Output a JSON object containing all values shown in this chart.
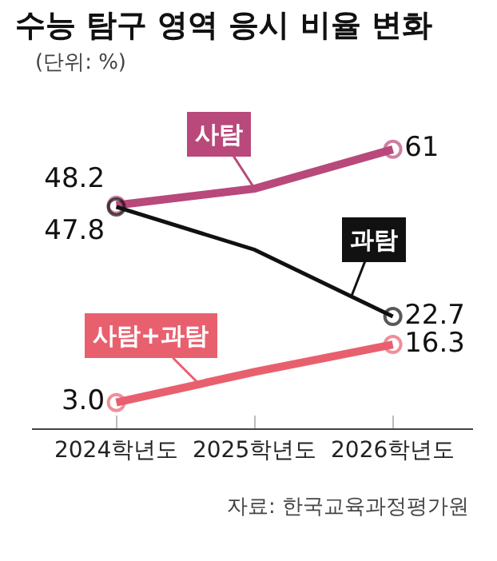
{
  "chart_data": {
    "type": "line",
    "title": "수능 탐구 영역 응시 비율 변화",
    "subtitle": "(단위: %)",
    "categories": [
      "2024학년도",
      "2025학년도",
      "2026학년도"
    ],
    "series": [
      {
        "name": "사탐",
        "color": "#b8497a",
        "values": [
          48.2,
          52,
          61
        ],
        "value_labels": [
          "48.2",
          null,
          "61"
        ]
      },
      {
        "name": "과탐",
        "color": "#111111",
        "values": [
          47.8,
          38,
          22.7
        ],
        "value_labels": [
          "47.8",
          null,
          "22.7"
        ]
      },
      {
        "name": "사탐+과탐",
        "color": "#e8606e",
        "values": [
          3.0,
          10,
          16.3
        ],
        "value_labels": [
          "3.0",
          null,
          "16.3"
        ]
      }
    ],
    "annotations": [
      "자료: 한국교육과정평가원"
    ],
    "tick_labels": "x",
    "legend": false,
    "marker": "circle",
    "line_style": "solid"
  }
}
